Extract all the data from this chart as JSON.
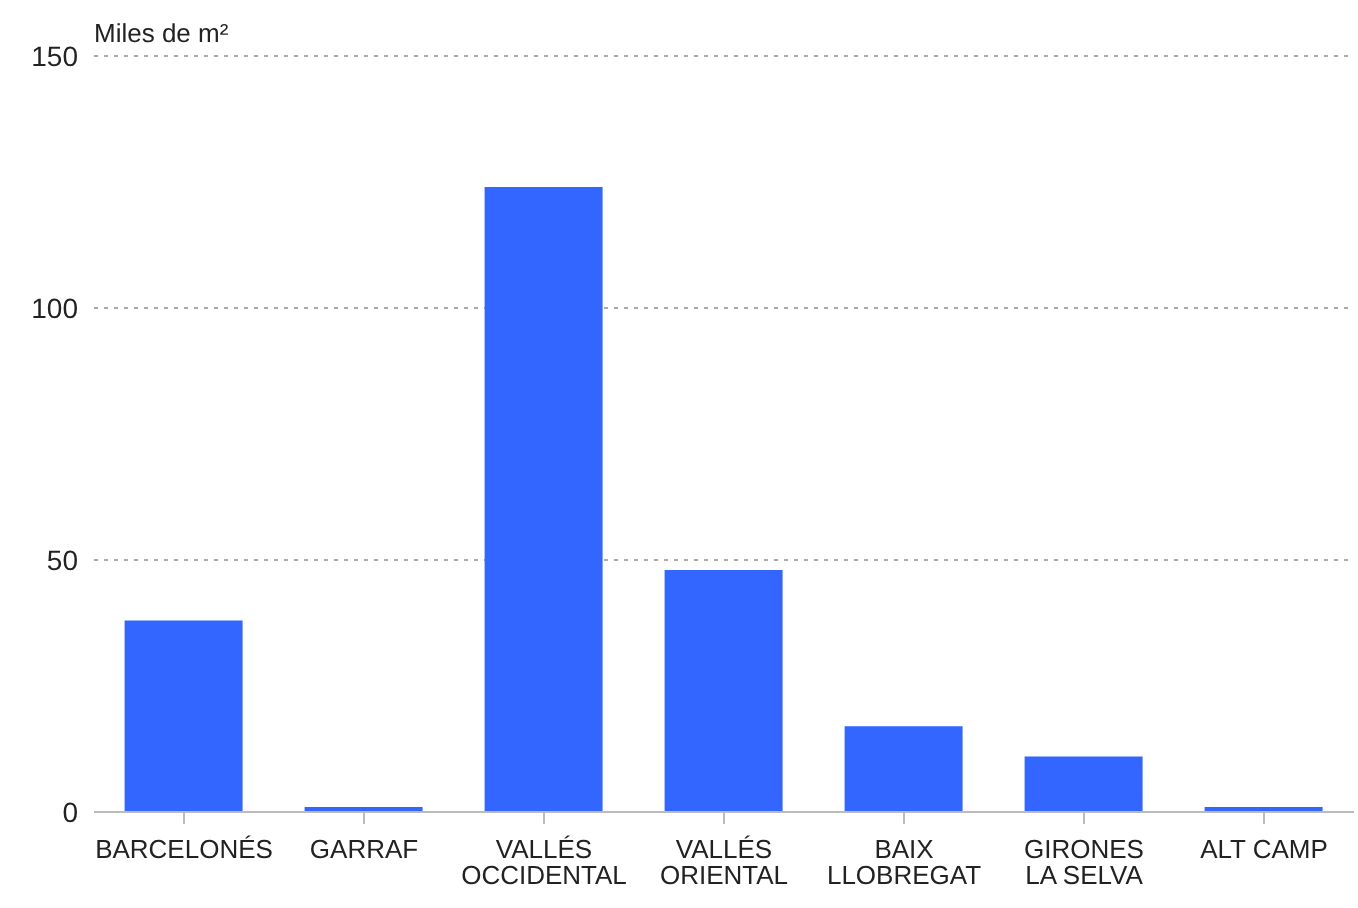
{
  "chart_data": {
    "type": "bar",
    "ylabel": "Miles de m²",
    "categories": [
      "BARCELONÉS",
      "GARRAF",
      "VALLÉS OCCIDENTAL",
      "VALLÉS ORIENTAL",
      "BAIX LLOBREGAT",
      "GIRONES LA SELVA",
      "ALT CAMP"
    ],
    "values": [
      38,
      1,
      124,
      48,
      17,
      11,
      1
    ],
    "color": "#3366ff",
    "ylim": [
      0,
      150
    ],
    "yticks": [
      0,
      50,
      100,
      150
    ],
    "grid": "y"
  }
}
